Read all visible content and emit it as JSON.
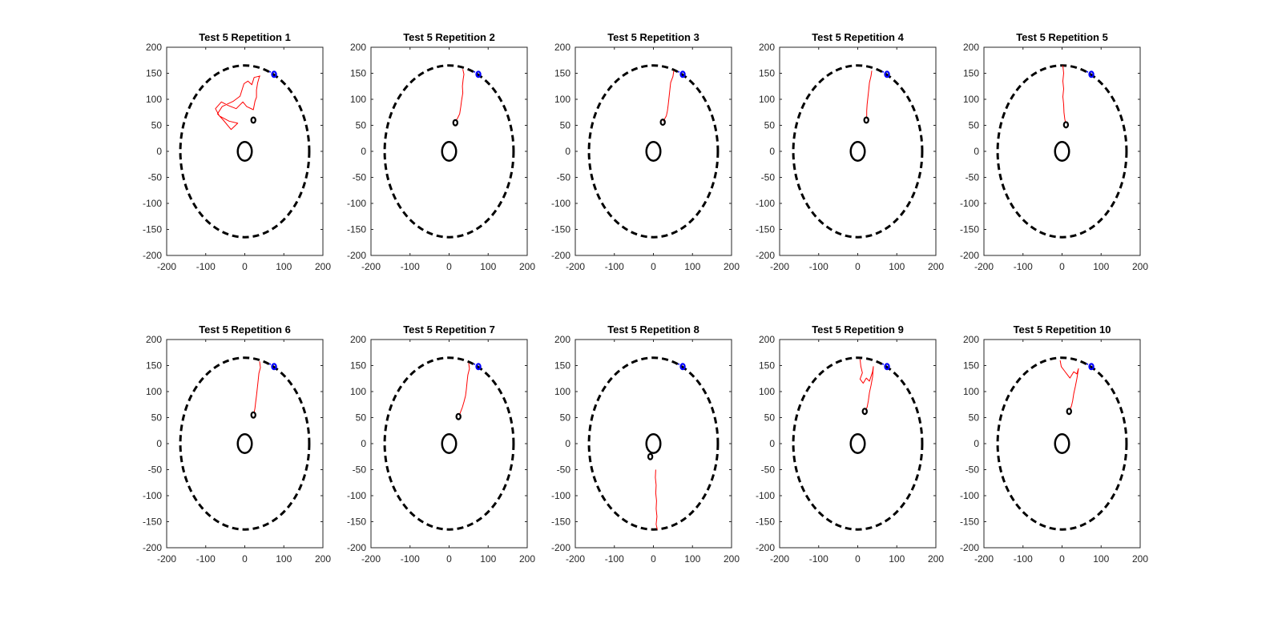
{
  "figure": {
    "background": "#ffffff"
  },
  "colors": {
    "axes": "#262626",
    "boundary": "#000000",
    "obstacle": "#000000",
    "trajectory": "#ff0000",
    "goal": "#0000ff",
    "endpoint": "#000000"
  },
  "chart_data": [
    {
      "type": "line",
      "title": "Test 5 Repetition 1",
      "xlim": [
        -200,
        200
      ],
      "ylim": [
        -200,
        200
      ],
      "xticks": [
        "-200",
        "-100",
        "0",
        "100",
        "200"
      ],
      "yticks": [
        "200",
        "150",
        "100",
        "50",
        "0",
        "-50",
        "-100",
        "-150",
        "-200"
      ],
      "grid": false,
      "boundary_circle": {
        "center": [
          0,
          0
        ],
        "radius": 165,
        "style": "dashed"
      },
      "obstacle_circle": {
        "center": [
          0,
          0
        ],
        "radius": 18,
        "style": "solid"
      },
      "goal_marker": {
        "x": 75,
        "y": 148
      },
      "end_marker": {
        "x": 22,
        "y": 60
      },
      "trajectory": [
        [
          38,
          145
        ],
        [
          33,
          132
        ],
        [
          30,
          118
        ],
        [
          30,
          104
        ],
        [
          26,
          96
        ],
        [
          22,
          80
        ],
        [
          5,
          86
        ],
        [
          -5,
          95
        ],
        [
          -22,
          82
        ],
        [
          -42,
          88
        ],
        [
          -60,
          95
        ],
        [
          -75,
          82
        ],
        [
          -65,
          68
        ],
        [
          -40,
          58
        ],
        [
          -18,
          54
        ],
        [
          -35,
          42
        ],
        [
          -55,
          60
        ],
        [
          -70,
          72
        ],
        [
          -58,
          86
        ],
        [
          -30,
          96
        ],
        [
          -12,
          106
        ],
        [
          -2,
          130
        ],
        [
          8,
          135
        ],
        [
          18,
          128
        ],
        [
          24,
          142
        ],
        [
          40,
          145
        ]
      ]
    },
    {
      "type": "line",
      "title": "Test 5 Repetition 2",
      "xlim": [
        -200,
        200
      ],
      "ylim": [
        -200,
        200
      ],
      "xticks": [
        "-200",
        "-100",
        "0",
        "100",
        "200"
      ],
      "yticks": [
        "200",
        "150",
        "100",
        "50",
        "0",
        "-50",
        "-100",
        "-150",
        "-200"
      ],
      "grid": false,
      "boundary_circle": {
        "center": [
          0,
          0
        ],
        "radius": 165,
        "style": "dashed"
      },
      "obstacle_circle": {
        "center": [
          0,
          0
        ],
        "radius": 18,
        "style": "solid"
      },
      "goal_marker": {
        "x": 75,
        "y": 148
      },
      "end_marker": {
        "x": 16,
        "y": 55
      },
      "trajectory": [
        [
          35,
          158
        ],
        [
          38,
          148
        ],
        [
          36,
          138
        ],
        [
          34,
          125
        ],
        [
          35,
          112
        ],
        [
          32,
          98
        ],
        [
          30,
          86
        ],
        [
          27,
          72
        ],
        [
          22,
          64
        ],
        [
          18,
          60
        ]
      ]
    },
    {
      "type": "line",
      "title": "Test 5 Repetition 3",
      "xlim": [
        -200,
        200
      ],
      "ylim": [
        -200,
        200
      ],
      "xticks": [
        "-200",
        "-100",
        "0",
        "100",
        "200"
      ],
      "yticks": [
        "200",
        "150",
        "100",
        "50",
        "0",
        "-50",
        "-100",
        "-150",
        "-200"
      ],
      "grid": false,
      "boundary_circle": {
        "center": [
          0,
          0
        ],
        "radius": 165,
        "style": "dashed"
      },
      "obstacle_circle": {
        "center": [
          0,
          0
        ],
        "radius": 18,
        "style": "solid"
      },
      "goal_marker": {
        "x": 75,
        "y": 148
      },
      "end_marker": {
        "x": 24,
        "y": 56
      },
      "trajectory": [
        [
          52,
          155
        ],
        [
          50,
          144
        ],
        [
          44,
          132
        ],
        [
          42,
          118
        ],
        [
          40,
          104
        ],
        [
          38,
          90
        ],
        [
          36,
          78
        ],
        [
          33,
          68
        ],
        [
          28,
          61
        ],
        [
          25,
          58
        ]
      ]
    },
    {
      "type": "line",
      "title": "Test 5 Repetition 4",
      "xlim": [
        -200,
        200
      ],
      "ylim": [
        -200,
        200
      ],
      "xticks": [
        "-200",
        "-100",
        "0",
        "100",
        "200"
      ],
      "yticks": [
        "200",
        "150",
        "100",
        "50",
        "0",
        "-50",
        "-100",
        "-150",
        "-200"
      ],
      "grid": false,
      "boundary_circle": {
        "center": [
          0,
          0
        ],
        "radius": 165,
        "style": "dashed"
      },
      "obstacle_circle": {
        "center": [
          0,
          0
        ],
        "radius": 18,
        "style": "solid"
      },
      "goal_marker": {
        "x": 75,
        "y": 148
      },
      "end_marker": {
        "x": 22,
        "y": 60
      },
      "trajectory": [
        [
          36,
          155
        ],
        [
          34,
          145
        ],
        [
          30,
          132
        ],
        [
          28,
          118
        ],
        [
          26,
          104
        ],
        [
          24,
          90
        ],
        [
          23,
          78
        ],
        [
          23,
          68
        ],
        [
          22,
          63
        ]
      ]
    },
    {
      "type": "line",
      "title": "Test 5 Repetition 5",
      "xlim": [
        -200,
        200
      ],
      "ylim": [
        -200,
        200
      ],
      "xticks": [
        "-200",
        "-100",
        "0",
        "100",
        "200"
      ],
      "yticks": [
        "200",
        "150",
        "100",
        "50",
        "0",
        "-50",
        "-100",
        "-150",
        "-200"
      ],
      "grid": false,
      "boundary_circle": {
        "center": [
          0,
          0
        ],
        "radius": 165,
        "style": "dashed"
      },
      "obstacle_circle": {
        "center": [
          0,
          0
        ],
        "radius": 18,
        "style": "solid"
      },
      "goal_marker": {
        "x": 75,
        "y": 148
      },
      "end_marker": {
        "x": 10,
        "y": 51
      },
      "trajectory": [
        [
          2,
          165
        ],
        [
          4,
          150
        ],
        [
          2,
          135
        ],
        [
          4,
          120
        ],
        [
          2,
          105
        ],
        [
          4,
          90
        ],
        [
          5,
          75
        ],
        [
          7,
          62
        ],
        [
          9,
          55
        ]
      ]
    },
    {
      "type": "line",
      "title": "Test 5 Repetition 6",
      "xlim": [
        -200,
        200
      ],
      "ylim": [
        -200,
        200
      ],
      "xticks": [
        "-200",
        "-100",
        "0",
        "100",
        "200"
      ],
      "yticks": [
        "200",
        "150",
        "100",
        "50",
        "0",
        "-50",
        "-100",
        "-150",
        "-200"
      ],
      "grid": false,
      "boundary_circle": {
        "center": [
          0,
          0
        ],
        "radius": 165,
        "style": "dashed"
      },
      "obstacle_circle": {
        "center": [
          0,
          0
        ],
        "radius": 18,
        "style": "solid"
      },
      "goal_marker": {
        "x": 75,
        "y": 148
      },
      "end_marker": {
        "x": 22,
        "y": 55
      },
      "trajectory": [
        [
          38,
          158
        ],
        [
          40,
          146
        ],
        [
          36,
          135
        ],
        [
          34,
          120
        ],
        [
          32,
          106
        ],
        [
          30,
          92
        ],
        [
          28,
          80
        ],
        [
          26,
          68
        ],
        [
          24,
          60
        ]
      ]
    },
    {
      "type": "line",
      "title": "Test 5 Repetition 7",
      "xlim": [
        -200,
        200
      ],
      "ylim": [
        -200,
        200
      ],
      "xticks": [
        "-200",
        "-100",
        "0",
        "100",
        "200"
      ],
      "yticks": [
        "200",
        "150",
        "100",
        "50",
        "0",
        "-50",
        "-100",
        "-150",
        "-200"
      ],
      "grid": false,
      "boundary_circle": {
        "center": [
          0,
          0
        ],
        "radius": 165,
        "style": "dashed"
      },
      "obstacle_circle": {
        "center": [
          0,
          0
        ],
        "radius": 18,
        "style": "solid"
      },
      "goal_marker": {
        "x": 75,
        "y": 148
      },
      "end_marker": {
        "x": 24,
        "y": 52
      },
      "trajectory": [
        [
          50,
          155
        ],
        [
          52,
          144
        ],
        [
          48,
          132
        ],
        [
          46,
          118
        ],
        [
          44,
          104
        ],
        [
          42,
          92
        ],
        [
          38,
          80
        ],
        [
          34,
          70
        ],
        [
          30,
          62
        ],
        [
          27,
          56
        ]
      ]
    },
    {
      "type": "line",
      "title": "Test 5 Repetition 8",
      "xlim": [
        -200,
        200
      ],
      "ylim": [
        -200,
        200
      ],
      "xticks": [
        "-200",
        "-100",
        "0",
        "100",
        "200"
      ],
      "yticks": [
        "200",
        "150",
        "100",
        "50",
        "0",
        "-50",
        "-100",
        "-150",
        "-200"
      ],
      "grid": false,
      "boundary_circle": {
        "center": [
          0,
          0
        ],
        "radius": 165,
        "style": "dashed"
      },
      "obstacle_circle": {
        "center": [
          0,
          0
        ],
        "radius": 18,
        "style": "solid"
      },
      "goal_marker": {
        "x": 75,
        "y": 148
      },
      "end_marker": {
        "x": -8,
        "y": -25
      },
      "trajectory": [
        [
          6,
          -50
        ],
        [
          5,
          -65
        ],
        [
          7,
          -80
        ],
        [
          6,
          -95
        ],
        [
          8,
          -110
        ],
        [
          7,
          -125
        ],
        [
          9,
          -140
        ],
        [
          7,
          -155
        ],
        [
          10,
          -165
        ]
      ]
    },
    {
      "type": "line",
      "title": "Test 5 Repetition 9",
      "xlim": [
        -200,
        200
      ],
      "ylim": [
        -200,
        200
      ],
      "xticks": [
        "-200",
        "-100",
        "0",
        "100",
        "200"
      ],
      "yticks": [
        "200",
        "150",
        "100",
        "50",
        "0",
        "-50",
        "-100",
        "-150",
        "-200"
      ],
      "grid": false,
      "boundary_circle": {
        "center": [
          0,
          0
        ],
        "radius": 165,
        "style": "dashed"
      },
      "obstacle_circle": {
        "center": [
          0,
          0
        ],
        "radius": 18,
        "style": "solid"
      },
      "goal_marker": {
        "x": 75,
        "y": 148
      },
      "end_marker": {
        "x": 18,
        "y": 62
      },
      "trajectory": [
        [
          6,
          162
        ],
        [
          8,
          148
        ],
        [
          12,
          136
        ],
        [
          6,
          124
        ],
        [
          14,
          116
        ],
        [
          22,
          126
        ],
        [
          30,
          120
        ],
        [
          38,
          138
        ],
        [
          40,
          148
        ],
        [
          38,
          128
        ],
        [
          34,
          112
        ],
        [
          30,
          98
        ],
        [
          27,
          82
        ],
        [
          24,
          70
        ],
        [
          20,
          64
        ]
      ]
    },
    {
      "type": "line",
      "title": "Test 5 Repetition 10",
      "xlim": [
        -200,
        200
      ],
      "ylim": [
        -200,
        200
      ],
      "xticks": [
        "-200",
        "-100",
        "0",
        "100",
        "200"
      ],
      "yticks": [
        "200",
        "150",
        "100",
        "50",
        "0",
        "-50",
        "-100",
        "-150",
        "-200"
      ],
      "grid": false,
      "boundary_circle": {
        "center": [
          0,
          0
        ],
        "radius": 165,
        "style": "dashed"
      },
      "obstacle_circle": {
        "center": [
          0,
          0
        ],
        "radius": 18,
        "style": "solid"
      },
      "goal_marker": {
        "x": 75,
        "y": 148
      },
      "end_marker": {
        "x": 18,
        "y": 62
      },
      "trajectory": [
        [
          -5,
          160
        ],
        [
          -2,
          148
        ],
        [
          6,
          140
        ],
        [
          14,
          132
        ],
        [
          20,
          126
        ],
        [
          30,
          138
        ],
        [
          38,
          134
        ],
        [
          42,
          144
        ],
        [
          38,
          125
        ],
        [
          34,
          110
        ],
        [
          30,
          96
        ],
        [
          27,
          82
        ],
        [
          24,
          72
        ],
        [
          20,
          66
        ]
      ]
    }
  ]
}
